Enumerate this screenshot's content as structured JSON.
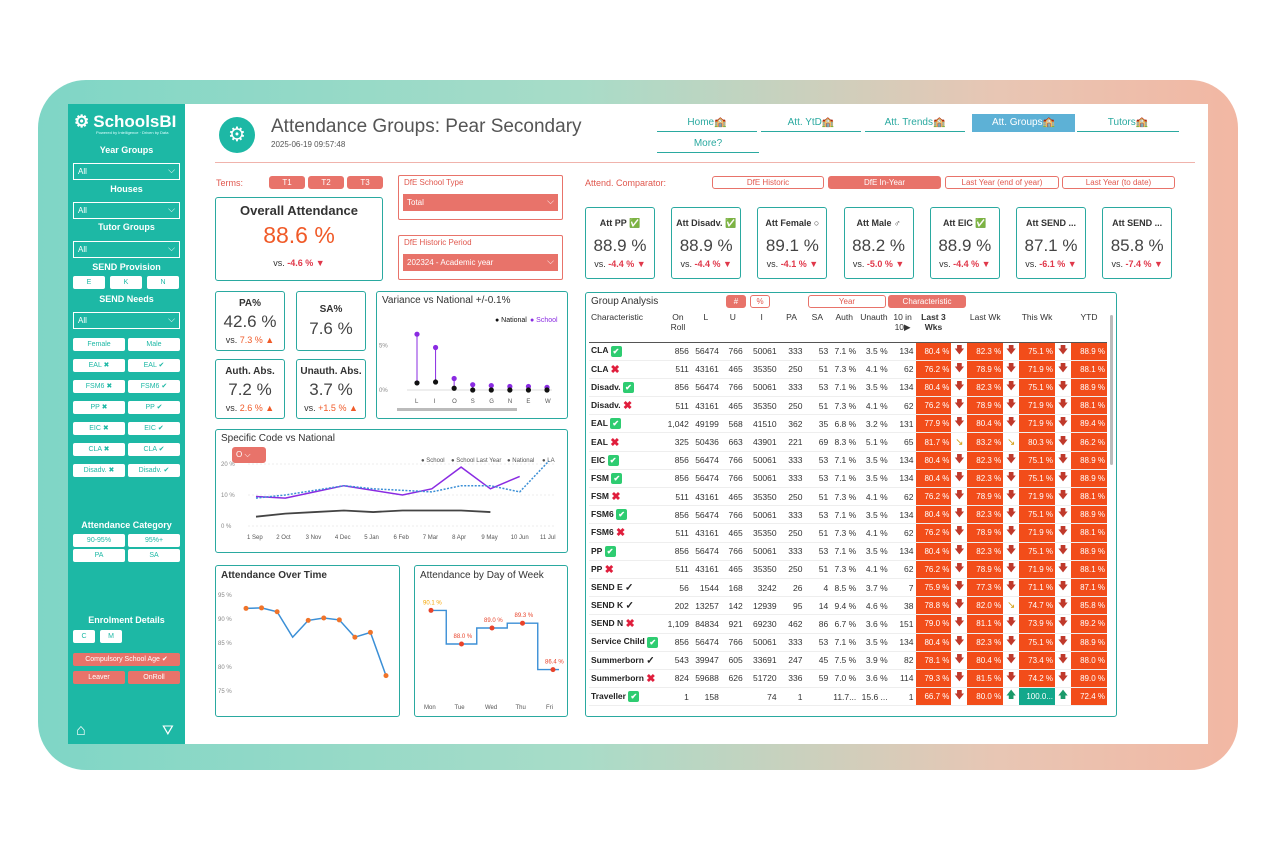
{
  "app": {
    "logo": "SchoolsBI",
    "logo_sub": "Powered by Intelligence · Driven by Data"
  },
  "sidebar": {
    "year_groups": {
      "label": "Year Groups",
      "value": "All"
    },
    "houses": {
      "label": "Houses",
      "value": "All"
    },
    "tutor_groups": {
      "label": "Tutor Groups",
      "value": "All"
    },
    "send_provision": {
      "label": "SEND Provision",
      "options": [
        "E",
        "K",
        "N"
      ]
    },
    "send_needs": {
      "label": "SEND Needs",
      "value": "All"
    },
    "chips": [
      [
        "Female",
        "Male"
      ],
      [
        "EAL ✖",
        "EAL ✔"
      ],
      [
        "FSM6 ✖",
        "FSM6 ✔"
      ],
      [
        "PP ✖",
        "PP ✔"
      ],
      [
        "EIC ✖",
        "EIC ✔"
      ],
      [
        "CLA ✖",
        "CLA ✔"
      ],
      [
        "Disadv. ✖",
        "Disadv. ✔"
      ]
    ],
    "attendance_category": {
      "label": "Attendance Category",
      "options": [
        "90-95%",
        "95%+",
        "PA",
        "SA"
      ]
    },
    "enrolment": {
      "label": "Enrolment Details",
      "options": [
        "C",
        "M"
      ],
      "compulsory": "Compulsory School Age ✔",
      "leaver": "Leaver",
      "onroll": "OnRoll"
    }
  },
  "header": {
    "title": "Attendance Groups: Pear Secondary",
    "timestamp": "2025-06-19 09:57:48",
    "nav": [
      "Home🏫",
      "Att. YtD🏫",
      "Att. Trends🏫",
      "Att. Groups🏫",
      "Tutors🏫",
      "More?"
    ]
  },
  "filters": {
    "terms_label": "Terms:",
    "terms": [
      "T1",
      "T2",
      "T3"
    ],
    "school_type": {
      "label": "DfE School Type",
      "value": "Total"
    },
    "historic_period": {
      "label": "DfE Historic Period",
      "value": "202324 - Academic year"
    },
    "comparator_label": "Attend. Comparator:",
    "comparators": [
      "DfE Historic",
      "DfE In-Year",
      "Last Year (end of year)",
      "Last Year (to date)"
    ]
  },
  "overall": {
    "title": "Overall Attendance",
    "value": "88.6 %",
    "vs_label": "vs.",
    "vs": "-4.6 % ▼"
  },
  "pa": {
    "title": "PA%",
    "value": "42.6 %",
    "vs": "7.3 % ▲"
  },
  "sa": {
    "title": "SA%",
    "value": "7.6 %"
  },
  "auth": {
    "title": "Auth. Abs.",
    "value": "7.2 %",
    "vs": "2.6 % ▲"
  },
  "unauth": {
    "title": "Unauth. Abs.",
    "value": "3.7 %",
    "vs": "+1.5 % ▲"
  },
  "kpis": [
    {
      "title": "Att PP ✅",
      "value": "88.9 %",
      "vs": "-4.4 % ▼"
    },
    {
      "title": "Att Disadv. ✅",
      "value": "88.9 %",
      "vs": "-4.4 % ▼"
    },
    {
      "title": "Att Female ○",
      "value": "89.1 %",
      "vs": "-4.1 % ▼"
    },
    {
      "title": "Att Male ♂",
      "value": "88.2 %",
      "vs": "-5.0 % ▼"
    },
    {
      "title": "Att EIC ✅",
      "value": "88.9 %",
      "vs": "-4.4 % ▼"
    },
    {
      "title": "Att SEND ...",
      "value": "87.1 %",
      "vs": "-6.1 % ▼"
    },
    {
      "title": "Att SEND ...",
      "value": "85.8 %",
      "vs": "-7.4 % ▼"
    }
  ],
  "charts": {
    "variance": {
      "title": "Variance vs National +/-0.1%",
      "legend": [
        "National",
        "School"
      ],
      "categories": [
        "L",
        "I",
        "O",
        "S",
        "G",
        "N",
        "E",
        "W"
      ],
      "yticks": [
        "5%",
        "0%"
      ]
    },
    "specific": {
      "title": "Specific Code vs National",
      "code": "O",
      "legend": [
        "School",
        "School Last Year",
        "National",
        "LA"
      ],
      "xticks": [
        "1 Sep",
        "2 Oct",
        "3 Nov",
        "4 Dec",
        "5 Jan",
        "6 Feb",
        "7 Mar",
        "8 Apr",
        "9 May",
        "10 Jun",
        "11 Jul"
      ],
      "yticks": [
        "20 %",
        "10 %",
        "0 %"
      ]
    },
    "over_time": {
      "title": "Attendance Over Time",
      "yticks": [
        "95 %",
        "90 %",
        "85 %",
        "80 %",
        "75 %"
      ]
    },
    "by_day": {
      "title": "Attendance by Day of Week",
      "labels": [
        "90.1 %",
        "88.0 %",
        "89.0 %",
        "89.3 %",
        "86.4 %"
      ],
      "days": [
        "Mon",
        "Tue",
        "Wed",
        "Thu",
        "Fri"
      ]
    }
  },
  "chart_data": [
    {
      "type": "scatter",
      "title": "Variance vs National +/-0.1%",
      "categories": [
        "L",
        "I",
        "O",
        "S",
        "G",
        "N",
        "E",
        "W"
      ],
      "series": [
        {
          "name": "National",
          "values": [
            0.8,
            0.9,
            0.2,
            0,
            0,
            0,
            0,
            0
          ]
        },
        {
          "name": "School",
          "values": [
            6.3,
            4.8,
            1.3,
            0.6,
            0.5,
            0.4,
            0.4,
            0.3
          ]
        }
      ]
    },
    {
      "type": "line",
      "title": "Specific Code vs National",
      "categories": [
        "1 Sep",
        "2 Oct",
        "3 Nov",
        "4 Dec",
        "5 Jan",
        "6 Feb",
        "7 Mar",
        "8 Apr",
        "9 May",
        "10 Jun",
        "11 Jul"
      ],
      "ylim": [
        0,
        20
      ],
      "series": [
        {
          "name": "School",
          "values": [
            9.5,
            9,
            11,
            13,
            11.5,
            10,
            12,
            19,
            12,
            16,
            null
          ]
        },
        {
          "name": "School Last Year",
          "values": [
            9,
            10,
            11.5,
            13,
            12,
            11.5,
            11,
            13,
            13,
            11,
            21
          ]
        },
        {
          "name": "National",
          "values": [
            3,
            4,
            4.5,
            5,
            4.5,
            5,
            5,
            5,
            4.5,
            null,
            null
          ]
        }
      ]
    },
    {
      "type": "line",
      "title": "Attendance Over Time",
      "ylim": [
        75,
        95
      ],
      "series": [
        {
          "name": "Attendance",
          "values": [
            92,
            92.1,
            91.3,
            86,
            89.5,
            90,
            89.6,
            86,
            87,
            78
          ]
        }
      ]
    },
    {
      "type": "line",
      "title": "Attendance by Day of Week",
      "categories": [
        "Mon",
        "Tue",
        "Wed",
        "Thu",
        "Fri"
      ],
      "values": [
        90.1,
        88.0,
        89.0,
        89.3,
        86.4
      ]
    }
  ],
  "group": {
    "title": "Group Analysis",
    "toggle": [
      "#",
      "%"
    ],
    "mode": [
      "Year",
      "Characteristic"
    ],
    "columns": [
      "Characteristic",
      "On Roll",
      "L",
      "U",
      "I",
      "PA",
      "SA",
      "Auth",
      "Unauth",
      "10 in 10▶",
      "Last 3 Wks",
      "",
      "Last Wk",
      "",
      "This Wk",
      "",
      "YTD"
    ],
    "rows": [
      [
        "CLA",
        "ck",
        "856",
        "56474",
        "766",
        "50061",
        "333",
        "53",
        "7.1 %",
        "3.5 %",
        "134",
        "80.4 %",
        "82.3 %",
        "75.1 %",
        "88.9 %"
      ],
      [
        "CLA",
        "x",
        "511",
        "43161",
        "465",
        "35350",
        "250",
        "51",
        "7.3 %",
        "4.1 %",
        "62",
        "76.2 %",
        "78.9 %",
        "71.9 %",
        "88.1 %"
      ],
      [
        "Disadv.",
        "ck",
        "856",
        "56474",
        "766",
        "50061",
        "333",
        "53",
        "7.1 %",
        "3.5 %",
        "134",
        "80.4 %",
        "82.3 %",
        "75.1 %",
        "88.9 %"
      ],
      [
        "Disadv.",
        "x",
        "511",
        "43161",
        "465",
        "35350",
        "250",
        "51",
        "7.3 %",
        "4.1 %",
        "62",
        "76.2 %",
        "78.9 %",
        "71.9 %",
        "88.1 %"
      ],
      [
        "EAL",
        "ck",
        "1,042",
        "49199",
        "568",
        "41510",
        "362",
        "35",
        "6.8 %",
        "3.2 %",
        "131",
        "77.9 %",
        "80.4 %",
        "71.9 %",
        "89.4 %"
      ],
      [
        "EAL",
        "x",
        "325",
        "50436",
        "663",
        "43901",
        "221",
        "69",
        "8.3 %",
        "5.1 %",
        "65",
        "81.7 %",
        "83.2 %",
        "80.3 %",
        "86.2 %"
      ],
      [
        "EIC",
        "ck",
        "856",
        "56474",
        "766",
        "50061",
        "333",
        "53",
        "7.1 %",
        "3.5 %",
        "134",
        "80.4 %",
        "82.3 %",
        "75.1 %",
        "88.9 %"
      ],
      [
        "FSM",
        "ck",
        "856",
        "56474",
        "766",
        "50061",
        "333",
        "53",
        "7.1 %",
        "3.5 %",
        "134",
        "80.4 %",
        "82.3 %",
        "75.1 %",
        "88.9 %"
      ],
      [
        "FSM",
        "x",
        "511",
        "43161",
        "465",
        "35350",
        "250",
        "51",
        "7.3 %",
        "4.1 %",
        "62",
        "76.2 %",
        "78.9 %",
        "71.9 %",
        "88.1 %"
      ],
      [
        "FSM6",
        "ck",
        "856",
        "56474",
        "766",
        "50061",
        "333",
        "53",
        "7.1 %",
        "3.5 %",
        "134",
        "80.4 %",
        "82.3 %",
        "75.1 %",
        "88.9 %"
      ],
      [
        "FSM6",
        "x",
        "511",
        "43161",
        "465",
        "35350",
        "250",
        "51",
        "7.3 %",
        "4.1 %",
        "62",
        "76.2 %",
        "78.9 %",
        "71.9 %",
        "88.1 %"
      ],
      [
        "PP",
        "ck",
        "856",
        "56474",
        "766",
        "50061",
        "333",
        "53",
        "7.1 %",
        "3.5 %",
        "134",
        "80.4 %",
        "82.3 %",
        "75.1 %",
        "88.9 %"
      ],
      [
        "PP",
        "x",
        "511",
        "43161",
        "465",
        "35350",
        "250",
        "51",
        "7.3 %",
        "4.1 %",
        "62",
        "76.2 %",
        "78.9 %",
        "71.9 %",
        "88.1 %"
      ],
      [
        "SEND E",
        "tk",
        "56",
        "1544",
        "168",
        "3242",
        "26",
        "4",
        "8.5 %",
        "3.7 %",
        "7",
        "75.9 %",
        "77.3 %",
        "71.1 %",
        "87.1 %"
      ],
      [
        "SEND K",
        "tk",
        "202",
        "13257",
        "142",
        "12939",
        "95",
        "14",
        "9.4 %",
        "4.6 %",
        "38",
        "78.8 %",
        "82.0 %",
        "74.7 %",
        "85.8 %"
      ],
      [
        "SEND N",
        "x",
        "1,109",
        "84834",
        "921",
        "69230",
        "462",
        "86",
        "6.7 %",
        "3.6 %",
        "151",
        "79.0 %",
        "81.1 %",
        "73.9 %",
        "89.2 %"
      ],
      [
        "Service Child",
        "ck",
        "856",
        "56474",
        "766",
        "50061",
        "333",
        "53",
        "7.1 %",
        "3.5 %",
        "134",
        "80.4 %",
        "82.3 %",
        "75.1 %",
        "88.9 %"
      ],
      [
        "Summerborn",
        "tk",
        "543",
        "39947",
        "605",
        "33691",
        "247",
        "45",
        "7.5 %",
        "3.9 %",
        "82",
        "78.1 %",
        "80.4 %",
        "73.4 %",
        "88.0 %"
      ],
      [
        "Summerborn",
        "x",
        "824",
        "59688",
        "626",
        "51720",
        "336",
        "59",
        "7.0 %",
        "3.6 %",
        "114",
        "79.3 %",
        "81.5 %",
        "74.2 %",
        "89.0 %"
      ],
      [
        "Traveller",
        "ck",
        "1",
        "158",
        "",
        "74",
        "1",
        "",
        "11.7...",
        "15.6 ...",
        "1",
        "66.7 %",
        "80.0 %",
        "100.0...",
        "72.4 %"
      ]
    ]
  }
}
